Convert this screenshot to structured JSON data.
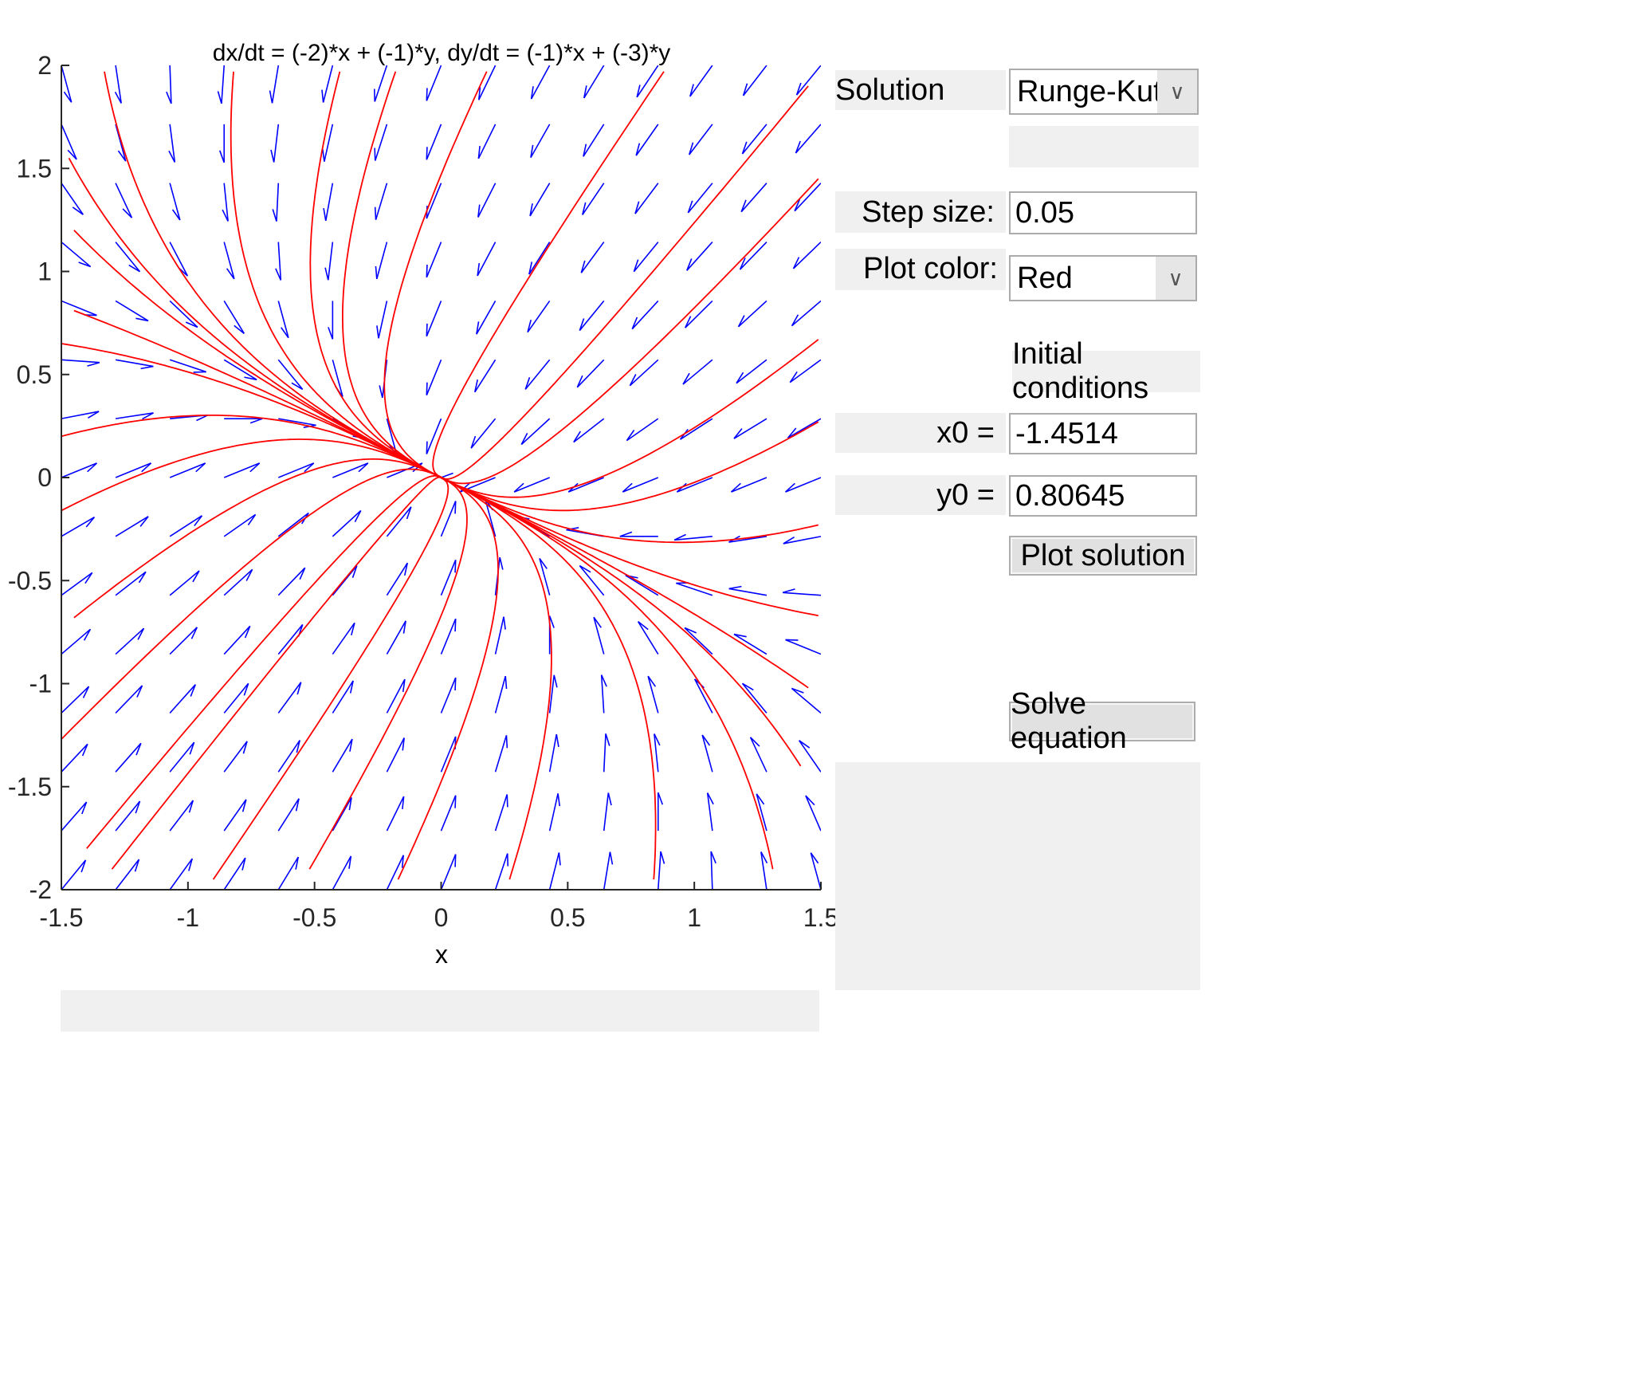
{
  "plot": {
    "title": "dx/dt = (-2)*x + (-1)*y, dy/dt = (-1)*x + (-3)*y",
    "xlabel": "x",
    "xlim": [
      -1.5,
      1.5
    ],
    "ylim": [
      -2,
      2
    ],
    "xticks": [
      "-1.5",
      "-1",
      "-0.5",
      "0",
      "0.5",
      "1",
      "1.5"
    ],
    "yticks": [
      "2",
      "1.5",
      "1",
      "0.5",
      "0",
      "-0.5",
      "-1",
      "-1.5",
      "-2"
    ],
    "colors": {
      "vector_field": "#0000ff",
      "trajectories": "#ff0000",
      "axes": "#262626"
    }
  },
  "controls": {
    "solution_method_label": "Solution method:",
    "solution_method_value": "Runge-Kutta",
    "step_size_label": "Step size:",
    "step_size_value": "0.05",
    "plot_color_label": "Plot color:",
    "plot_color_value": "Red",
    "initial_conditions_label": "Initial conditions",
    "x0_label": "x0 =",
    "x0_value": "-1.4514",
    "y0_label": "y0 =",
    "y0_value": "0.80645",
    "plot_solution_button": "Plot solution",
    "solve_equation_button": "Solve equation"
  },
  "chart_data": {
    "type": "scatter",
    "title": "dx/dt = (-2)*x + (-1)*y, dy/dt = (-1)*x + (-3)*y",
    "xlabel": "x",
    "ylabel": "",
    "xlim": [
      -1.5,
      1.5
    ],
    "ylim": [
      -2,
      2
    ],
    "system": {
      "a": -2,
      "b": -1,
      "c": -1,
      "d": -3
    },
    "grid": false,
    "series": [
      {
        "values": [
          [
            -1.33,
            1.97
          ],
          [
            -0.82,
            1.97
          ],
          [
            -0.4,
            1.97
          ],
          [
            -0.18,
            1.97
          ],
          [
            0.18,
            1.97
          ],
          [
            0.88,
            1.97
          ],
          [
            -1.47,
            1.55
          ],
          [
            -1.45,
            1.2
          ],
          [
            -1.45,
            0.81
          ],
          [
            -1.5,
            0.65
          ],
          [
            -1.5,
            0.2
          ],
          [
            -1.5,
            -0.16
          ],
          [
            -1.45,
            -0.68
          ],
          [
            -1.5,
            -1.27
          ],
          [
            -1.4,
            -1.8
          ],
          [
            -1.3,
            -1.9
          ],
          [
            -0.9,
            -1.95
          ],
          [
            -0.52,
            -1.9
          ],
          [
            -0.17,
            -1.95
          ],
          [
            0.27,
            -1.95
          ],
          [
            0.84,
            -1.95
          ],
          [
            1.31,
            -1.9
          ],
          [
            1.45,
            1.9
          ],
          [
            1.49,
            1.45
          ],
          [
            1.49,
            0.67
          ],
          [
            1.49,
            0.27
          ],
          [
            1.49,
            -0.23
          ],
          [
            1.49,
            -0.67
          ],
          [
            1.45,
            -1.02
          ],
          [
            1.42,
            -1.4
          ]
        ]
      }
    ]
  }
}
